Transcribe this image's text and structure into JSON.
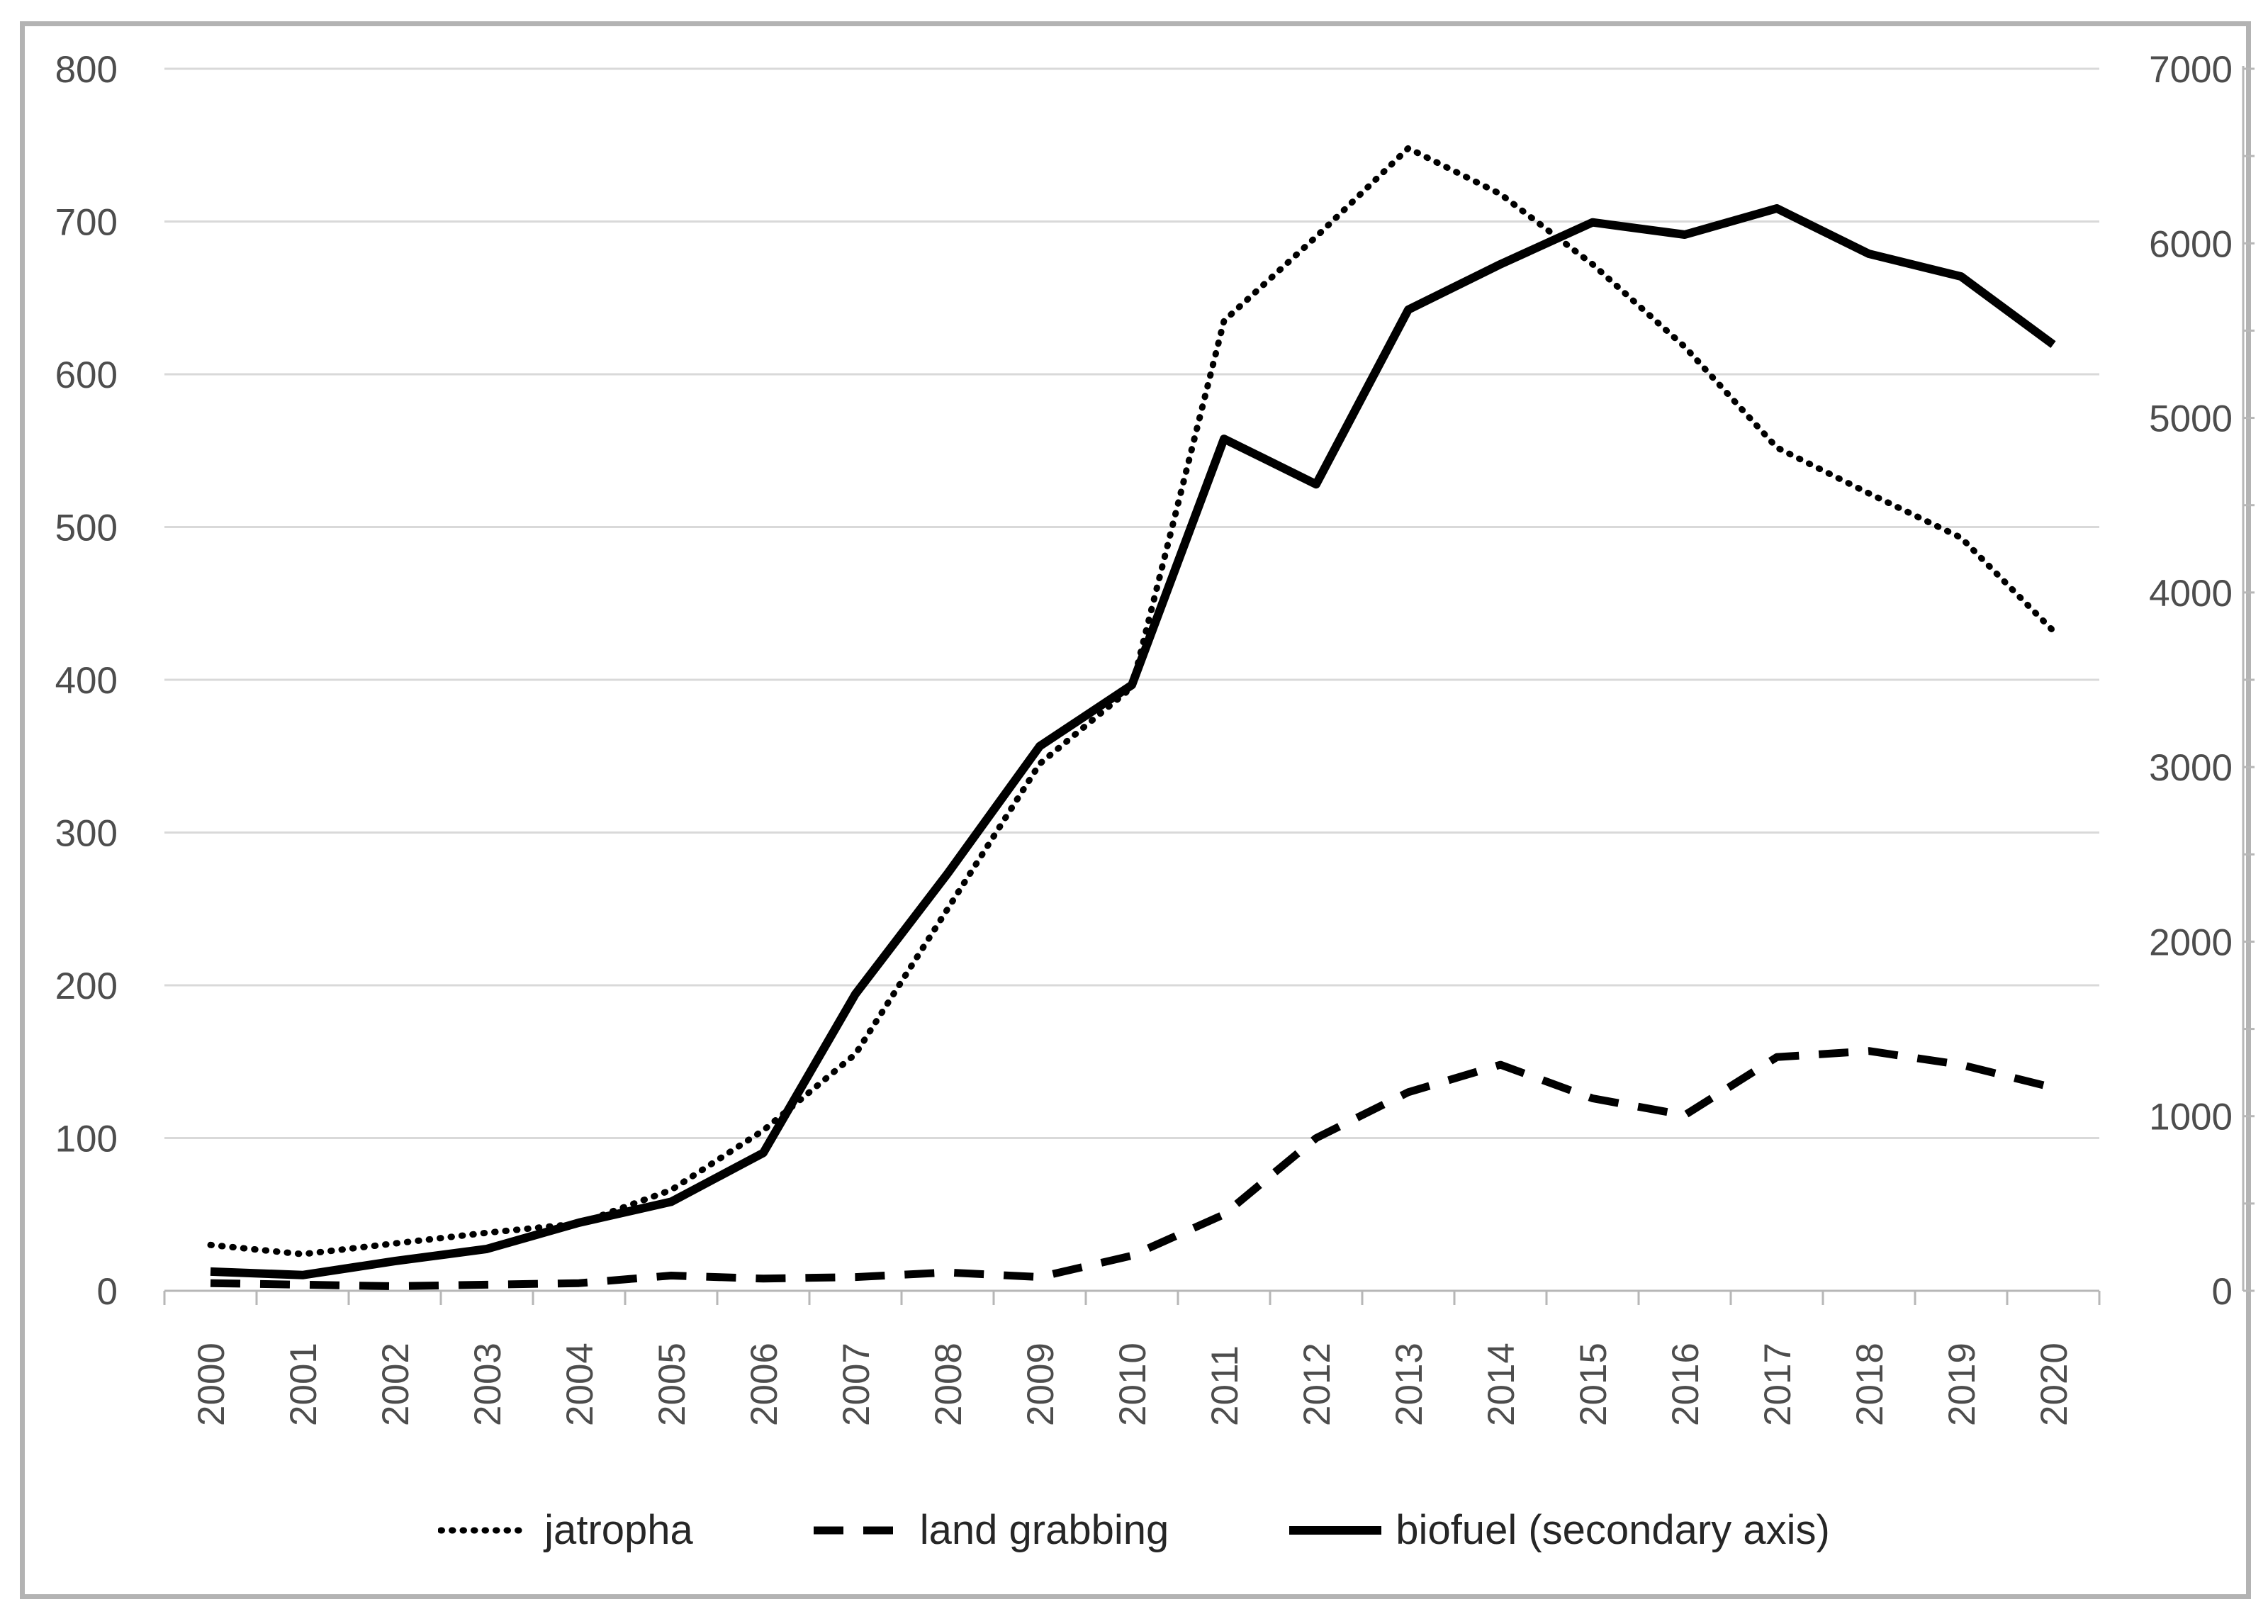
{
  "chart_data": {
    "type": "line",
    "title": "",
    "x_categories": [
      "2000",
      "2001",
      "2002",
      "2003",
      "2004",
      "2005",
      "2006",
      "2007",
      "2008",
      "2009",
      "2010",
      "2011",
      "2012",
      "2013",
      "2014",
      "2015",
      "2016",
      "2017",
      "2018",
      "2019",
      "2020"
    ],
    "series": [
      {
        "name": "jatropha",
        "axis": "left",
        "line_style": "dotted",
        "color": "#000000",
        "values": [
          30,
          24,
          31,
          38,
          44,
          66,
          105,
          155,
          250,
          345,
          395,
          635,
          690,
          748,
          718,
          672,
          618,
          552,
          522,
          493,
          432
        ]
      },
      {
        "name": "land grabbing",
        "axis": "left",
        "line_style": "dashed",
        "color": "#000000",
        "values": [
          5,
          4,
          3,
          4,
          5,
          10,
          8,
          9,
          12,
          9,
          23,
          50,
          100,
          130,
          148,
          126,
          115,
          153,
          157,
          148,
          133
        ]
      },
      {
        "name": "biofuel (secondary axis)",
        "axis": "right",
        "line_style": "solid",
        "color": "#000000",
        "values": [
          110,
          90,
          170,
          240,
          390,
          510,
          790,
          1700,
          2390,
          3120,
          3470,
          4880,
          4620,
          5620,
          5880,
          6120,
          6050,
          6200,
          5940,
          5810,
          5420
        ]
      }
    ],
    "left_axis": {
      "min": 0,
      "max": 800,
      "tick_step": 100,
      "ticks": [
        "0",
        "100",
        "200",
        "300",
        "400",
        "500",
        "600",
        "700",
        "800"
      ]
    },
    "right_axis": {
      "min": 0,
      "max": 7000,
      "tick_step": 1000,
      "ticks": [
        "0",
        "1000",
        "2000",
        "3000",
        "4000",
        "5000",
        "6000",
        "7000"
      ]
    },
    "grid": true,
    "legend_position": "bottom",
    "colors": {
      "series": "#000000",
      "gridline": "#d9d9d9",
      "axis_line": "#b7b7b7",
      "axis_text": "#4d4d4d",
      "legend_text": "#262626",
      "frame_border": "#b3b3b3",
      "background": "#ffffff"
    }
  }
}
